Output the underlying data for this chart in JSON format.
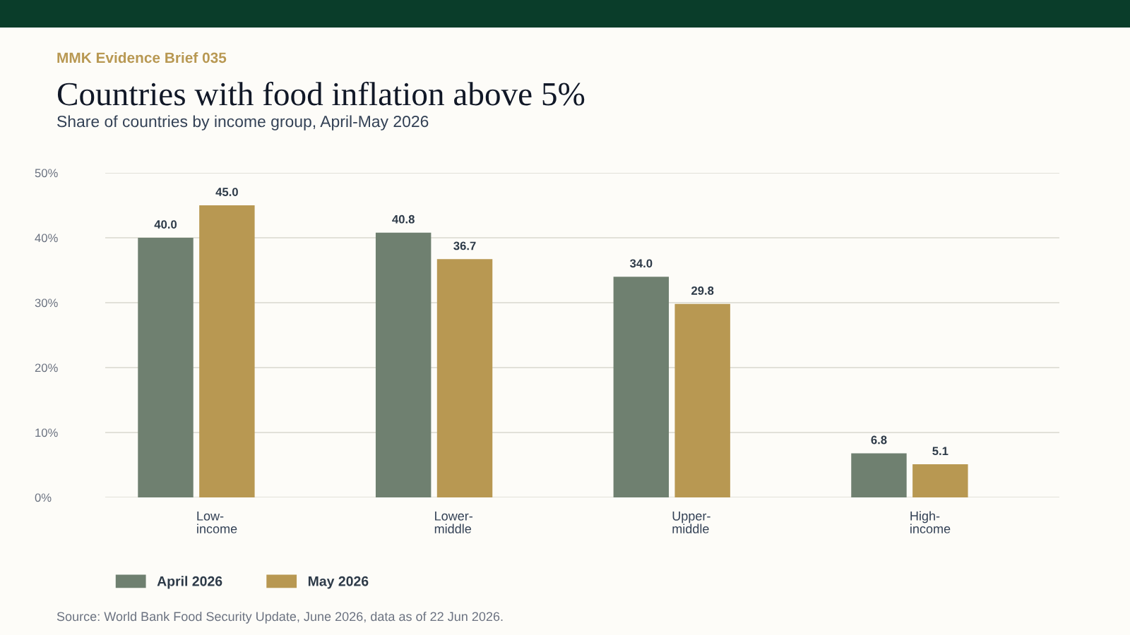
{
  "chart_data": {
    "type": "bar",
    "title": "Countries with food inflation above 5%",
    "subtitle": "Share of countries by income group, April-May 2026",
    "annotations": [
      "MMK Evidence Brief 035",
      "Source: World Bank Food Security Update, June 2026, data as of 22 Jun 2026."
    ],
    "categories": [
      "Low-\nincome",
      "Lower-\nmiddle",
      "Upper-\nmiddle",
      "High-\nincome"
    ],
    "series": [
      {
        "name": "April 2026",
        "color": "#6f8070",
        "values": [
          40.0,
          40.8,
          34.0,
          6.8
        ],
        "value_labels": [
          "40.0",
          "40.8",
          "34.0",
          "6.8"
        ]
      },
      {
        "name": "May 2026",
        "color": "#b89852",
        "values": [
          45.0,
          36.7,
          29.8,
          5.1
        ],
        "value_labels": [
          "45.0",
          "36.7",
          "29.8",
          "5.1"
        ]
      }
    ],
    "ylim": [
      0,
      50
    ],
    "yticks": [
      {
        "value": 0,
        "label": "0%"
      },
      {
        "value": 10,
        "label": "10%"
      },
      {
        "value": 20,
        "label": "20%"
      },
      {
        "value": 30,
        "label": "30%"
      },
      {
        "value": 40,
        "label": "40%"
      },
      {
        "value": 50,
        "label": "50%"
      }
    ],
    "grid": "y",
    "legend": "bottom"
  }
}
